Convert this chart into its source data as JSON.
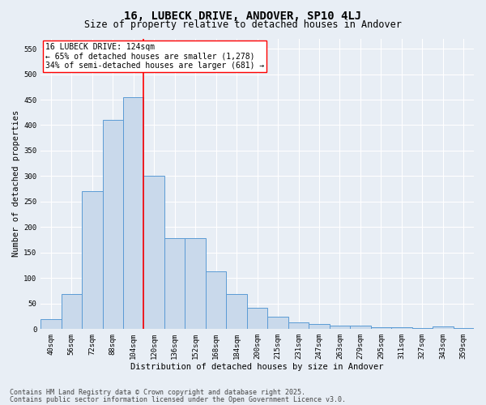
{
  "title1": "16, LUBECK DRIVE, ANDOVER, SP10 4LJ",
  "title2": "Size of property relative to detached houses in Andover",
  "xlabel": "Distribution of detached houses by size in Andover",
  "ylabel": "Number of detached properties",
  "categories": [
    "40sqm",
    "56sqm",
    "72sqm",
    "88sqm",
    "104sqm",
    "120sqm",
    "136sqm",
    "152sqm",
    "168sqm",
    "184sqm",
    "200sqm",
    "215sqm",
    "231sqm",
    "247sqm",
    "263sqm",
    "279sqm",
    "295sqm",
    "311sqm",
    "327sqm",
    "343sqm",
    "359sqm"
  ],
  "values": [
    20,
    68,
    270,
    410,
    455,
    300,
    178,
    178,
    113,
    68,
    42,
    24,
    13,
    10,
    6,
    6,
    4,
    3,
    2,
    5,
    2
  ],
  "bar_color": "#c9d9eb",
  "bar_edge_color": "#5b9bd5",
  "vline_color": "red",
  "vline_x_index": 5,
  "annotation_line1": "16 LUBECK DRIVE: 124sqm",
  "annotation_line2": "← 65% of detached houses are smaller (1,278)",
  "annotation_line3": "34% of semi-detached houses are larger (681) →",
  "annotation_box_color": "white",
  "annotation_box_edge": "red",
  "ylim": [
    0,
    570
  ],
  "yticks": [
    0,
    50,
    100,
    150,
    200,
    250,
    300,
    350,
    400,
    450,
    500,
    550
  ],
  "footer1": "Contains HM Land Registry data © Crown copyright and database right 2025.",
  "footer2": "Contains public sector information licensed under the Open Government Licence v3.0.",
  "bg_color": "#e8eef5",
  "plot_bg_color": "#e8eef5",
  "grid_color": "white",
  "title_fontsize": 10,
  "subtitle_fontsize": 8.5,
  "axis_label_fontsize": 7.5,
  "tick_fontsize": 6.5,
  "annotation_fontsize": 7,
  "footer_fontsize": 6
}
